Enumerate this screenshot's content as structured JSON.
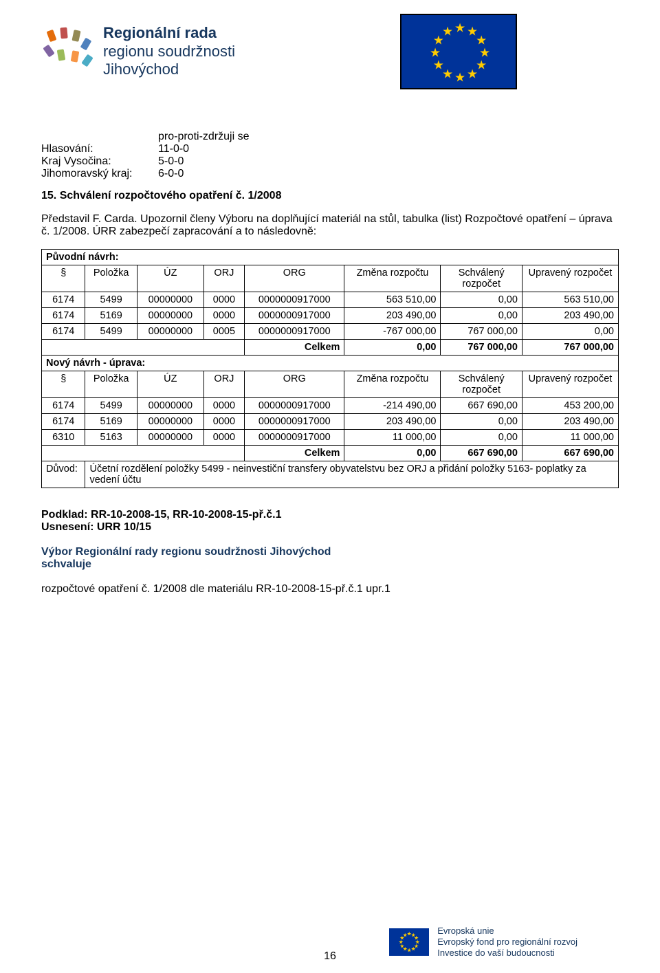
{
  "header": {
    "org_name_line1": "Regionální rada",
    "org_name_line2": "regionu soudržnosti",
    "org_name_line3": "Jihovýchod",
    "eu_flag_bg": "#003399",
    "eu_star_color": "#ffcc00",
    "logo_mark_colors": [
      "#e46c0a",
      "#c0504d",
      "#948a54",
      "#4f81bd",
      "#8064a2",
      "#9bbb59",
      "#f79646",
      "#4bacc6"
    ]
  },
  "voting": {
    "header": "pro-proti-zdržuji se",
    "lines": [
      {
        "label": "Hlasování:",
        "value": "11-0-0"
      },
      {
        "label": "Kraj Vysočina:",
        "value": "5-0-0"
      },
      {
        "label": "Jihomoravský kraj:",
        "value": "6-0-0"
      }
    ]
  },
  "section": {
    "title": "15. Schválení rozpočtového opatření č. 1/2008",
    "presented": "Představil F. Carda. Upozornil členy Výboru na doplňující materiál na stůl, tabulka (list) Rozpočtové opatření – úprava č. 1/2008. ÚRR zabezpečí zapracování a to následovně:"
  },
  "table": {
    "columns": [
      "§",
      "Položka",
      "ÚZ",
      "ORJ",
      "ORG",
      "Změna rozpočtu",
      "Schválený rozpočet",
      "Upravený rozpočet"
    ],
    "block1_label": "Původní návrh:",
    "block1_rows": [
      [
        "6174",
        "5499",
        "00000000",
        "0000",
        "0000000917000",
        "563 510,00",
        "0,00",
        "563 510,00"
      ],
      [
        "6174",
        "5169",
        "00000000",
        "0000",
        "0000000917000",
        "203 490,00",
        "0,00",
        "203 490,00"
      ],
      [
        "6174",
        "5499",
        "00000000",
        "0005",
        "0000000917000",
        "-767 000,00",
        "767 000,00",
        "0,00"
      ]
    ],
    "block1_total": [
      "Celkem",
      "0,00",
      "767 000,00",
      "767 000,00"
    ],
    "block2_label": "Nový návrh - úprava:",
    "block2_rows": [
      [
        "6174",
        "5499",
        "00000000",
        "0000",
        "0000000917000",
        "-214 490,00",
        "667 690,00",
        "453 200,00"
      ],
      [
        "6174",
        "5169",
        "00000000",
        "0000",
        "0000000917000",
        "203 490,00",
        "0,00",
        "203 490,00"
      ],
      [
        "6310",
        "5163",
        "00000000",
        "0000",
        "0000000917000",
        "11 000,00",
        "0,00",
        "11 000,00"
      ]
    ],
    "block2_total": [
      "Celkem",
      "0,00",
      "667 690,00",
      "667 690,00"
    ],
    "duvod_label": "Důvod:",
    "duvod_text": "Účetní rozdělení položky 5499 - neinvestiční transfery obyvatelstvu bez ORJ a přidání položky 5163- poplatky za vedení účtu",
    "col_widths": [
      "55px",
      "70px",
      "90px",
      "55px",
      "135px",
      "130px",
      "110px",
      "130px"
    ]
  },
  "footer_text": {
    "podklad": "Podklad: RR-10-2008-15, RR-10-2008-15-př.č.1",
    "usneseni": "Usnesení: URR 10/15",
    "vybor": "Výbor Regionální rady regionu soudržnosti Jihovýchod",
    "schvaluje": "schvaluje",
    "rozpoctove": "rozpočtové opatření č. 1/2008 dle materiálu RR-10-2008-15-př.č.1 upr.1"
  },
  "footer_logo": {
    "line1": "Evropská unie",
    "line2": "Evropský fond pro regionální rozvoj",
    "line3": "Investice do vaší budoucnosti"
  },
  "page_number": "16",
  "colors": {
    "heading_blue": "#17375e",
    "text_black": "#000000",
    "background": "#ffffff",
    "border": "#000000"
  },
  "fonts": {
    "body": "Arial",
    "body_size_pt": 12,
    "table_size_pt": 11
  }
}
